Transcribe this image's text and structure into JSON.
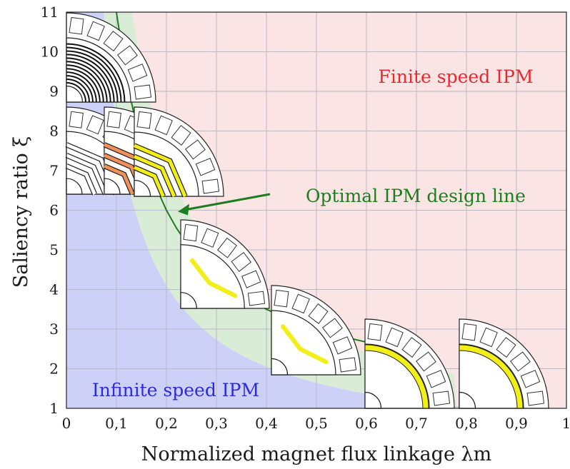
{
  "chart_data": {
    "type": "line",
    "xlabel": "Normalized magnet flux linkage λm",
    "ylabel": "Saliency ratio ξ",
    "xlim": [
      0,
      1
    ],
    "ylim": [
      1,
      11
    ],
    "x_ticks": [
      "0",
      "0,1",
      "0,2",
      "0,3",
      "0,4",
      "0,5",
      "0,6",
      "0,7",
      "0,8",
      "0,9",
      "1"
    ],
    "y_ticks": [
      "1",
      "2",
      "3",
      "4",
      "5",
      "6",
      "7",
      "8",
      "9",
      "10",
      "11"
    ],
    "grid": true,
    "series": [
      {
        "name": "Optimal IPM design line",
        "x": [
          0.1,
          0.12,
          0.14,
          0.16,
          0.18,
          0.2,
          0.22,
          0.25,
          0.28,
          0.32,
          0.36,
          0.4,
          0.45,
          0.5,
          0.55,
          0.6,
          0.65,
          0.7
        ],
        "y": [
          11,
          9.33,
          8.14,
          7.25,
          6.56,
          6.0,
          5.55,
          5.0,
          4.57,
          4.13,
          3.78,
          3.5,
          3.22,
          3.0,
          2.82,
          2.67,
          2.54,
          2.43
        ]
      }
    ],
    "regions": [
      {
        "label": "Finite speed IPM",
        "color": "#fbe4e4",
        "text_color": "#e8282e"
      },
      {
        "label": "Infinite speed IPM",
        "color": "#cdd0f7",
        "text_color": "#2b2bde"
      },
      {
        "label": "",
        "color": "#d9ecd6"
      }
    ],
    "annotations": [
      {
        "text": "Optimal IPM design line",
        "color": "#1e7d1e",
        "arrow_to": [
          0.22,
          6.0
        ]
      }
    ],
    "inset_motor_sketches": [
      {
        "type": "multi-layer-ipm",
        "lambda_m": 0.05
      },
      {
        "type": "three-barrier-ipm",
        "lambda_m": 0.1
      },
      {
        "type": "three-barrier-ipm-orange",
        "lambda_m": 0.15
      },
      {
        "type": "two-barrier-ipm-yellow",
        "lambda_m": 0.2
      },
      {
        "type": "v-shape-ipm",
        "lambda_m": 0.25
      },
      {
        "type": "v-shape-ipm",
        "lambda_m": 0.43
      },
      {
        "type": "spm-yellow-magnet",
        "lambda_m": 0.68
      },
      {
        "type": "spm-yellow-magnet",
        "lambda_m": 0.9
      }
    ],
    "colors": {
      "finite_region": "#fbe4e4",
      "infinite_region": "#cdd0f7",
      "optimal_band": "#d9ecd6",
      "optimal_line": "#1e7d1e",
      "magnet_yellow": "#f2ee1a",
      "magnet_orange": "#f0915a",
      "grid": "#b9b9c9"
    }
  }
}
